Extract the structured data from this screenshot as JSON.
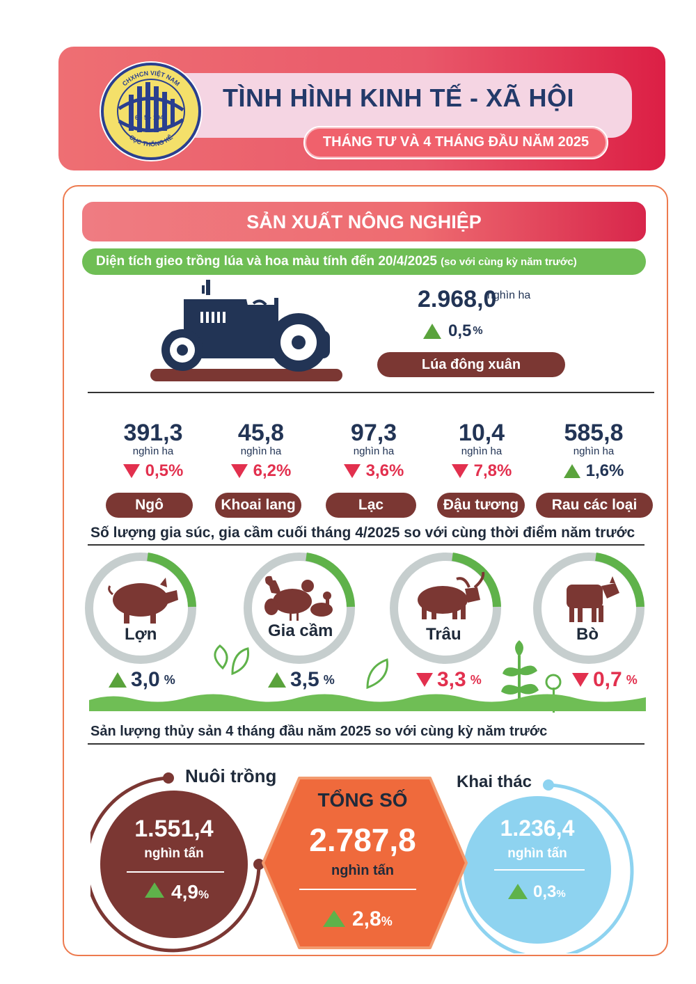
{
  "header": {
    "title": "TÌNH HÌNH KINH TẾ - XÃ HỘI",
    "subtitle": "THÁNG TƯ VÀ 4 THÁNG ĐẦU NĂM 2025",
    "logo_text_top": "CHXHCN VIỆT NAM",
    "logo_text_date": "6 - 5 - 1946",
    "logo_text_bottom": "CỤC THỐNG KÊ"
  },
  "section": {
    "title": "SẢN XUẤT NÔNG NGHIỆP"
  },
  "planting": {
    "heading": "Diện tích gieo trồng lúa và hoa màu tính đến 20/4/2025",
    "heading_note": "(so với cùng kỳ năm trước)",
    "rice": {
      "value": "2.968,0",
      "unit": "nghìn ha",
      "change": "0,5",
      "change_unit": "%",
      "direction": "up",
      "label": "Lúa đông xuân"
    },
    "crops": [
      {
        "value": "391,3",
        "unit": "nghìn ha",
        "change": "0,5%",
        "direction": "down",
        "label": "Ngô"
      },
      {
        "value": "45,8",
        "unit": "nghìn ha",
        "change": "6,2%",
        "direction": "down",
        "label": "Khoai lang"
      },
      {
        "value": "97,3",
        "unit": "nghìn ha",
        "change": "3,6%",
        "direction": "down",
        "label": "Lạc"
      },
      {
        "value": "10,4",
        "unit": "nghìn ha",
        "change": "7,8%",
        "direction": "down",
        "label": "Đậu tương"
      },
      {
        "value": "585,8",
        "unit": "nghìn ha",
        "change": "1,6%",
        "direction": "up",
        "label": "Rau các loại"
      }
    ]
  },
  "livestock": {
    "heading": "Số lượng gia súc, gia cầm cuối tháng 4/2025 so với cùng thời điểm năm trước",
    "items": [
      {
        "label": "Lợn",
        "change": "3,0",
        "unit": "%",
        "direction": "up",
        "icon": "pig-icon"
      },
      {
        "label": "Gia cầm",
        "change": "3,5",
        "unit": "%",
        "direction": "up",
        "icon": "poultry-icon"
      },
      {
        "label": "Trâu",
        "change": "3,3",
        "unit": "%",
        "direction": "down",
        "icon": "buffalo-icon"
      },
      {
        "label": "Bò",
        "change": "0,7",
        "unit": "%",
        "direction": "down",
        "icon": "cow-icon"
      }
    ]
  },
  "fishery": {
    "heading": "Sản lượng thủy sản 4 tháng đầu năm 2025 so với cùng kỳ năm trước",
    "aquaculture": {
      "label": "Nuôi trồng",
      "value": "1.551,4",
      "unit": "nghìn tấn",
      "change": "4,9",
      "change_unit": "%",
      "direction": "up"
    },
    "total": {
      "label": "TỔNG SỐ",
      "value": "2.787,8",
      "unit": "nghìn tấn",
      "change": "2,8",
      "change_unit": "%",
      "direction": "up"
    },
    "capture": {
      "label": "Khai thác",
      "value": "1.236,4",
      "unit": "nghìn tấn",
      "change": "0,3",
      "change_unit": "%",
      "direction": "up"
    }
  },
  "colors": {
    "header_red": "#e9586a",
    "green": "#6fbe55",
    "brown": "#7b3733",
    "orange": "#ef6a3c",
    "light_blue": "#8ed3f0",
    "navy": "#223455",
    "down_red": "#e2304e"
  }
}
